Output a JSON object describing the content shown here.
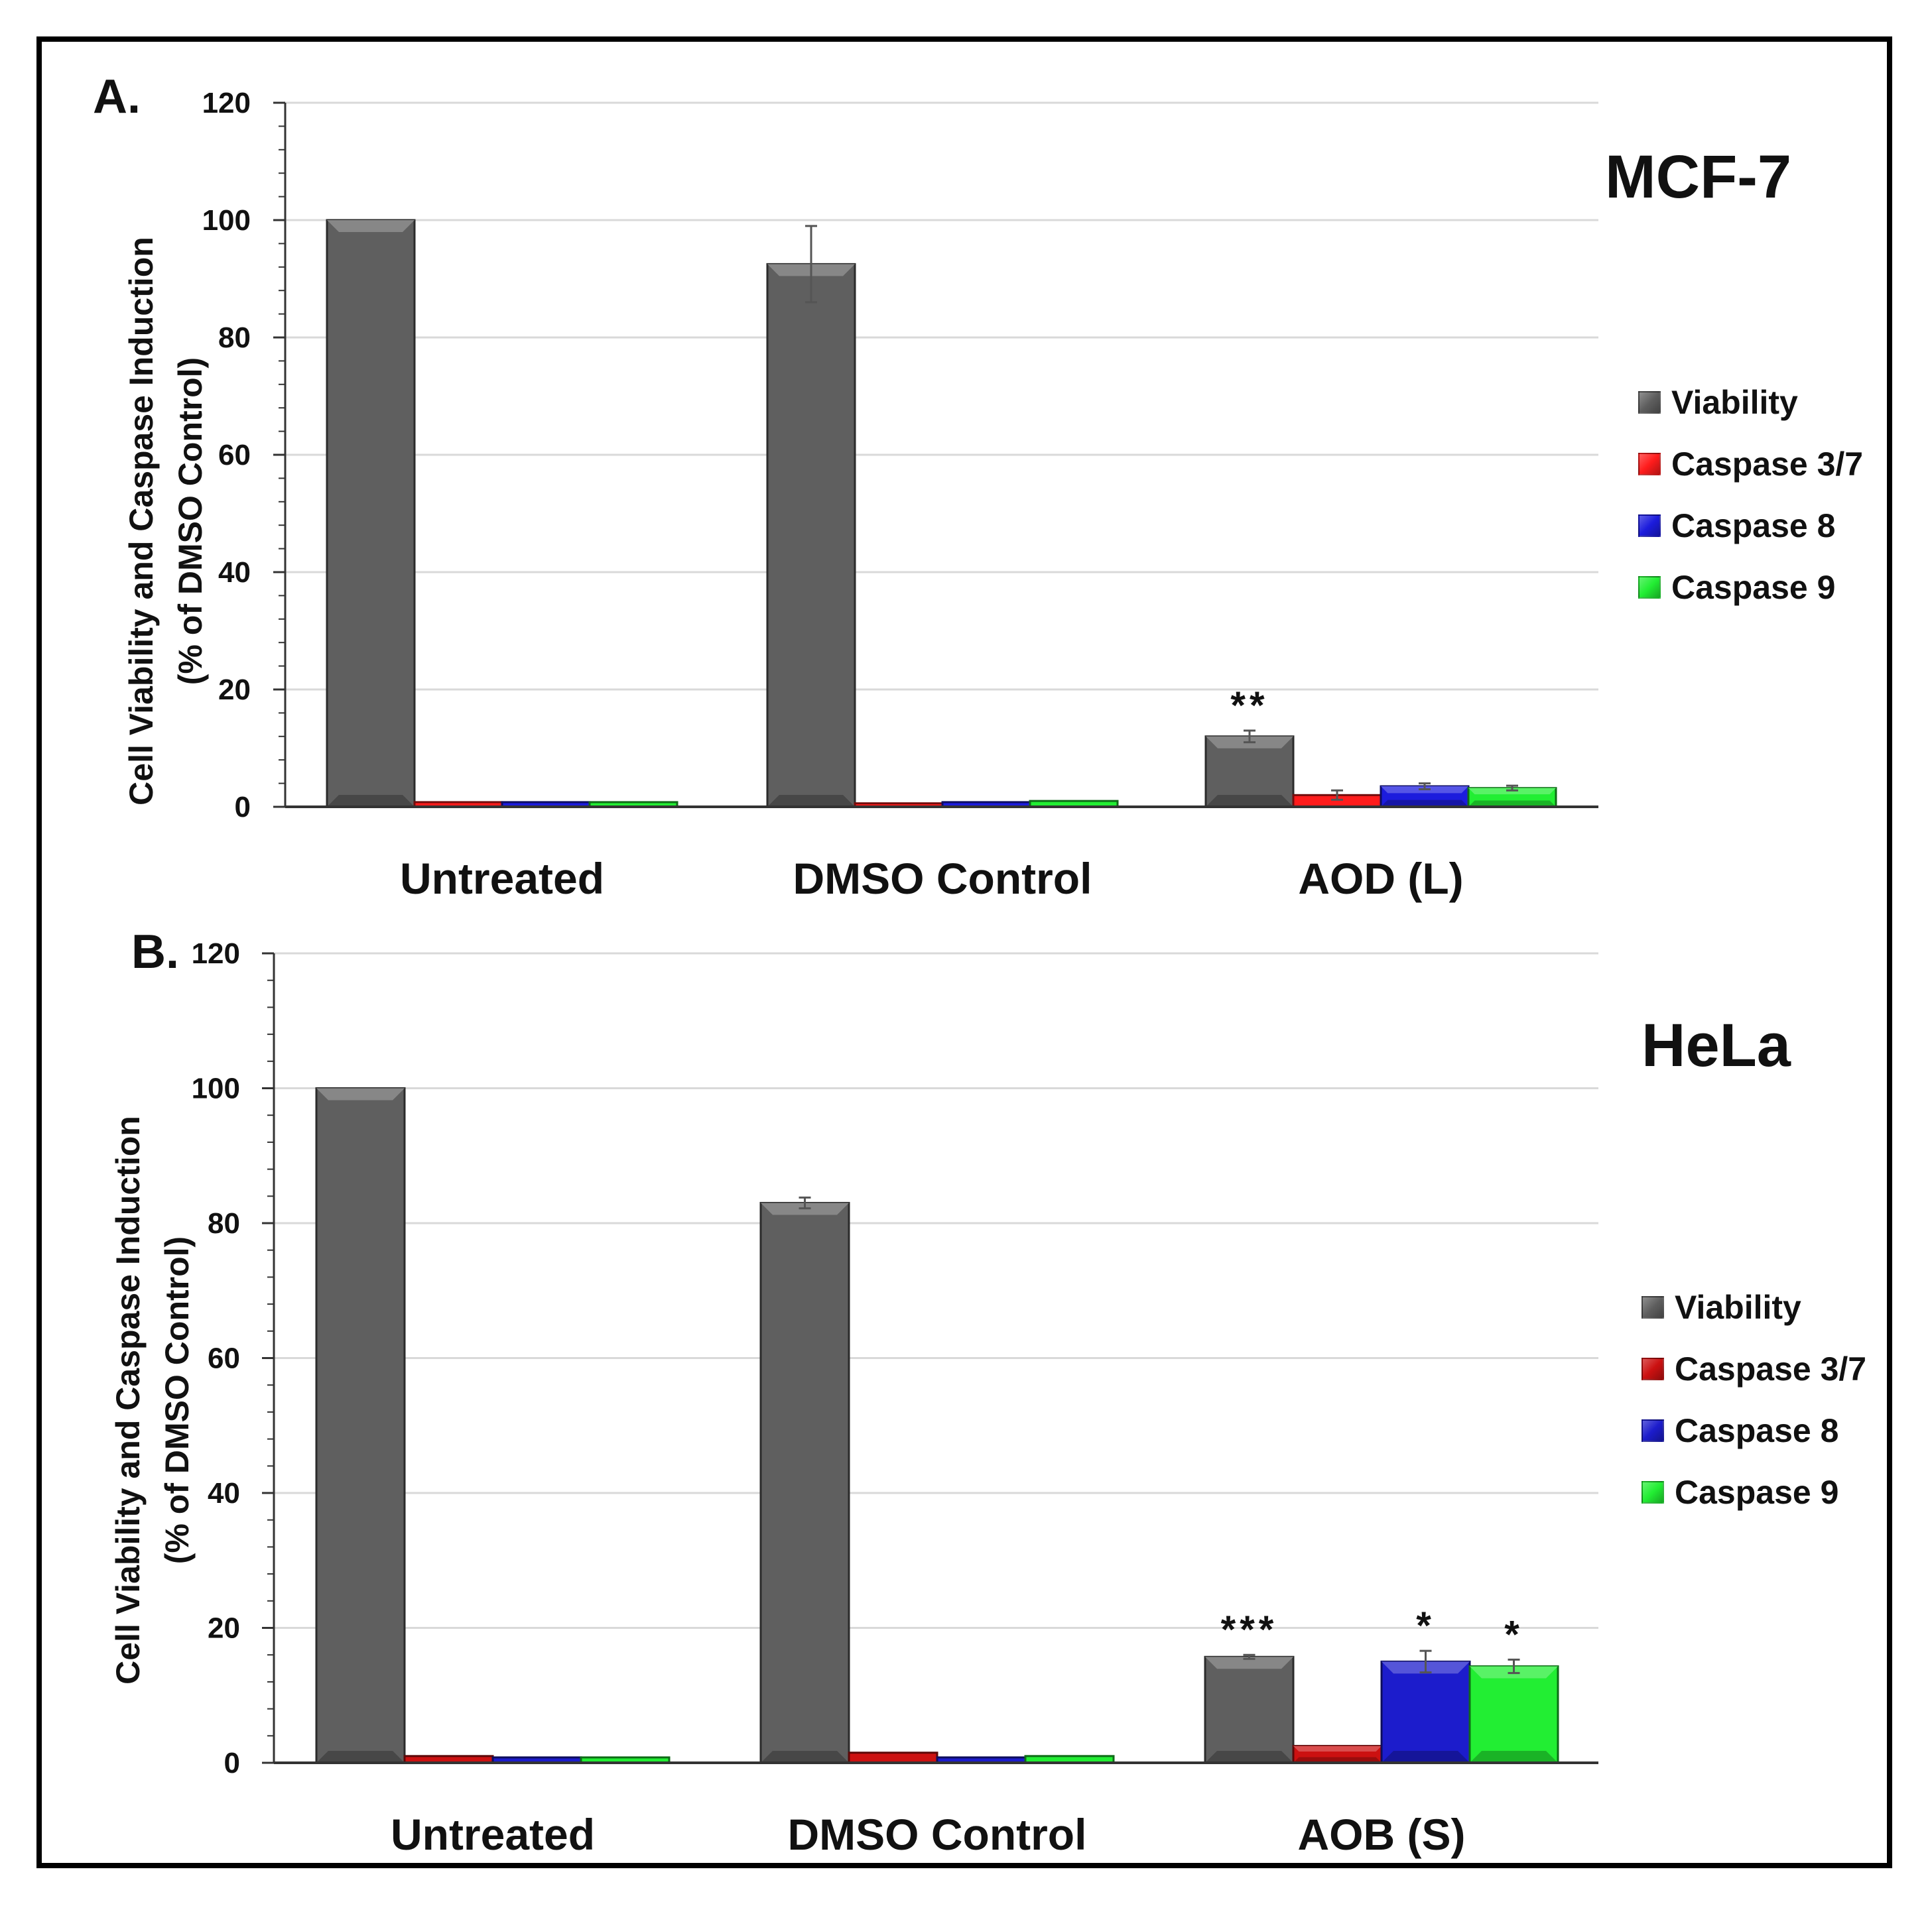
{
  "chart_data": [
    {
      "type": "bar",
      "panel": "A.",
      "title": "MCF-7",
      "ylabel_lines": [
        "Cell Viability and Caspase Induction",
        "(% of DMSO Control)"
      ],
      "categories": [
        "Untreated",
        "DMSO Control",
        "AOD (L)"
      ],
      "ylim": [
        0,
        120
      ],
      "yticks": [
        "0",
        "20",
        "40",
        "60",
        "80",
        "100",
        "120"
      ],
      "grid": true,
      "legend_position": "right",
      "series": [
        {
          "name": "Viability",
          "color": "#5f5f5f",
          "values": [
            100,
            92.5,
            12
          ],
          "errors": [
            0,
            6.5,
            1
          ]
        },
        {
          "name": "Caspase 3/7",
          "color": "#ff1c1c",
          "values": [
            0.8,
            0.6,
            2
          ],
          "errors": [
            0,
            0,
            0.8
          ]
        },
        {
          "name": "Caspase 8",
          "color": "#1c1cdd",
          "values": [
            0.8,
            0.8,
            3.5
          ],
          "errors": [
            0,
            0,
            0.5
          ]
        },
        {
          "name": "Caspase 9",
          "color": "#22ee33",
          "values": [
            0.8,
            1,
            3.2
          ],
          "errors": [
            0,
            0,
            0.4
          ]
        }
      ],
      "annotations": [
        {
          "category": 2,
          "series": 0,
          "text": "**"
        }
      ]
    },
    {
      "type": "bar",
      "panel": "B.",
      "title": "HeLa",
      "ylabel_lines": [
        "Cell Viability and Caspase Induction",
        "(% of DMSO Control)"
      ],
      "categories": [
        "Untreated",
        "DMSO Control",
        "AOB (S)"
      ],
      "ylim": [
        0,
        120
      ],
      "yticks": [
        "0",
        "20",
        "40",
        "60",
        "80",
        "100",
        "120"
      ],
      "grid": true,
      "legend_position": "right",
      "series": [
        {
          "name": "Viability",
          "color": "#5f5f5f",
          "values": [
            100,
            83,
            15.7
          ],
          "errors": [
            0,
            0.8,
            0.3
          ]
        },
        {
          "name": "Caspase 3/7",
          "color": "#cc1111",
          "values": [
            1,
            1.5,
            2.5
          ],
          "errors": [
            0,
            0,
            0
          ]
        },
        {
          "name": "Caspase 8",
          "color": "#1c1ccc",
          "values": [
            0.8,
            0.8,
            15
          ],
          "errors": [
            0,
            0,
            1.6
          ]
        },
        {
          "name": "Caspase 9",
          "color": "#22ee33",
          "values": [
            0.8,
            1,
            14.3
          ],
          "errors": [
            0,
            0,
            1
          ]
        }
      ],
      "annotations": [
        {
          "category": 2,
          "series": 0,
          "text": "***"
        },
        {
          "category": 2,
          "series": 2,
          "text": "*"
        },
        {
          "category": 2,
          "series": 3,
          "text": "*"
        }
      ]
    }
  ]
}
